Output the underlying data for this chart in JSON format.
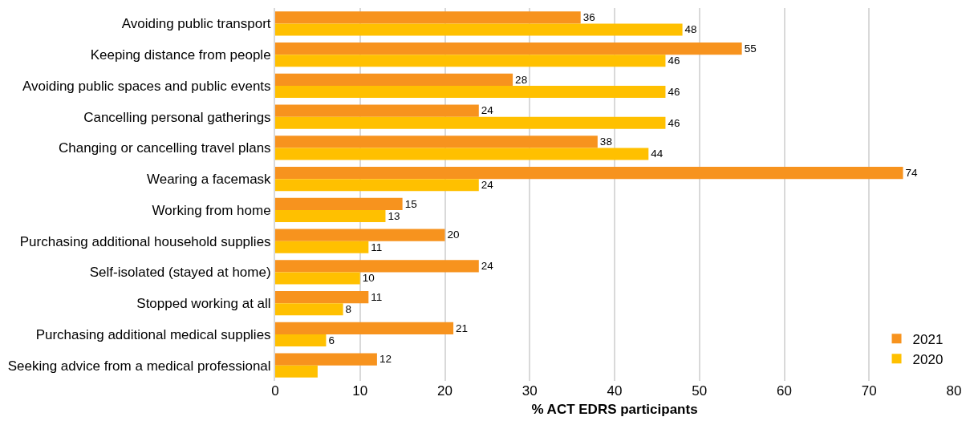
{
  "chart_data": {
    "type": "bar",
    "orientation": "horizontal",
    "xlabel": "% ACT EDRS participants",
    "categories": [
      "Avoiding public transport",
      "Keeping distance from people",
      "Avoiding public spaces and public events",
      "Cancelling personal gatherings",
      "Changing or cancelling travel plans",
      "Wearing a facemask",
      "Working from home",
      "Purchasing additional household supplies",
      "Self-isolated (stayed at home)",
      "Stopped working at all",
      "Purchasing additional medical supplies",
      "Seeking advice from a medical professional"
    ],
    "series": [
      {
        "name": "2021",
        "color": "#f7931e",
        "values": [
          36,
          55,
          28,
          24,
          38,
          74,
          15,
          20,
          24,
          11,
          21,
          12
        ],
        "value_labels": [
          "36",
          "55",
          "28",
          "24",
          "38",
          "74",
          "15",
          "20",
          "24",
          "11",
          "21",
          "12"
        ]
      },
      {
        "name": "2020",
        "color": "#ffc000",
        "values": [
          48,
          46,
          46,
          46,
          44,
          24,
          13,
          11,
          10,
          8,
          6,
          5
        ],
        "value_labels": [
          "48",
          "46",
          "46",
          "46",
          "44",
          "24",
          "13",
          "11",
          "10",
          "8",
          "6",
          null
        ]
      }
    ],
    "xlim": [
      0,
      80
    ],
    "xticks": [
      0,
      10,
      20,
      30,
      40,
      50,
      60,
      70,
      80
    ],
    "grid": "x",
    "legend": "bottom right"
  }
}
